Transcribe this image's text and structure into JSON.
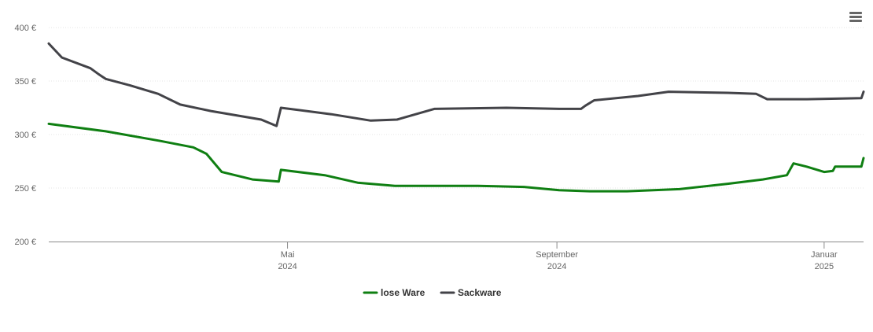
{
  "chart_data": {
    "type": "line",
    "title": "",
    "xlabel": "",
    "ylabel": "",
    "ylim": [
      200,
      400
    ],
    "y_ticks": [
      {
        "value": 200,
        "label": "200 €"
      },
      {
        "value": 250,
        "label": "250 €"
      },
      {
        "value": 300,
        "label": "300 €"
      },
      {
        "value": 350,
        "label": "350 €"
      },
      {
        "value": 400,
        "label": "400 €"
      }
    ],
    "xlim": [
      "2024-01-13",
      "2025-01-19"
    ],
    "x_ticks": [
      {
        "date": "2024-05-01",
        "month": "Mai",
        "year": "2024"
      },
      {
        "date": "2024-09-01",
        "month": "September",
        "year": "2024"
      },
      {
        "date": "2025-01-01",
        "month": "Januar",
        "year": "2025"
      }
    ],
    "grid": true,
    "legend_position": "bottom-center",
    "series": [
      {
        "name": "lose Ware",
        "color": "#0f7f12",
        "points": [
          [
            "2024-01-13",
            310
          ],
          [
            "2024-02-08",
            303
          ],
          [
            "2024-03-04",
            294
          ],
          [
            "2024-03-19",
            288
          ],
          [
            "2024-03-25",
            282
          ],
          [
            "2024-04-01",
            265
          ],
          [
            "2024-04-15",
            258
          ],
          [
            "2024-04-27",
            256
          ],
          [
            "2024-04-28",
            267
          ],
          [
            "2024-05-18",
            262
          ],
          [
            "2024-06-02",
            255
          ],
          [
            "2024-06-19",
            252
          ],
          [
            "2024-07-27",
            252
          ],
          [
            "2024-08-17",
            251
          ],
          [
            "2024-09-02",
            248
          ],
          [
            "2024-09-16",
            247
          ],
          [
            "2024-10-03",
            247
          ],
          [
            "2024-10-27",
            249
          ],
          [
            "2024-11-18",
            254
          ],
          [
            "2024-12-04",
            258
          ],
          [
            "2024-12-15",
            262
          ],
          [
            "2024-12-18",
            273
          ],
          [
            "2024-12-24",
            270
          ],
          [
            "2025-01-01",
            265
          ],
          [
            "2025-01-05",
            266
          ],
          [
            "2025-01-06",
            270
          ],
          [
            "2025-01-18",
            270
          ],
          [
            "2025-01-19",
            278
          ]
        ]
      },
      {
        "name": "Sackware",
        "color": "#434348",
        "points": [
          [
            "2024-01-13",
            385
          ],
          [
            "2024-01-19",
            372
          ],
          [
            "2024-02-01",
            362
          ],
          [
            "2024-02-05",
            356
          ],
          [
            "2024-02-08",
            352
          ],
          [
            "2024-02-19",
            346
          ],
          [
            "2024-03-03",
            338
          ],
          [
            "2024-03-13",
            328
          ],
          [
            "2024-03-27",
            322
          ],
          [
            "2024-04-19",
            314
          ],
          [
            "2024-04-26",
            308
          ],
          [
            "2024-04-28",
            325
          ],
          [
            "2024-05-21",
            319
          ],
          [
            "2024-06-08",
            313
          ],
          [
            "2024-06-20",
            314
          ],
          [
            "2024-07-07",
            324
          ],
          [
            "2024-08-09",
            325
          ],
          [
            "2024-09-02",
            324
          ],
          [
            "2024-09-12",
            324
          ],
          [
            "2024-09-14",
            327
          ],
          [
            "2024-09-18",
            332
          ],
          [
            "2024-10-08",
            336
          ],
          [
            "2024-10-22",
            340
          ],
          [
            "2024-11-18",
            339
          ],
          [
            "2024-12-01",
            338
          ],
          [
            "2024-12-06",
            333
          ],
          [
            "2024-12-24",
            333
          ],
          [
            "2025-01-18",
            334
          ],
          [
            "2025-01-19",
            340
          ]
        ]
      }
    ]
  },
  "menu": {
    "icon": "hamburger-menu-icon"
  }
}
